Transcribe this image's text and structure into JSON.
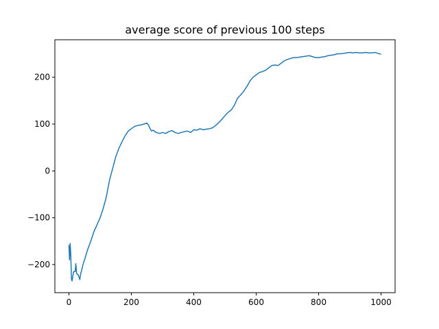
{
  "chart_data": {
    "type": "line",
    "title": "average score of previous 100 steps",
    "xlabel": "",
    "ylabel": "",
    "xlim": [
      -45,
      1045
    ],
    "ylim": [
      -260,
      280
    ],
    "grid": false,
    "xticks": [
      0,
      200,
      400,
      600,
      800,
      1000
    ],
    "xtick_labels": [
      "0",
      "200",
      "400",
      "600",
      "800",
      "1000"
    ],
    "yticks": [
      -200,
      -100,
      0,
      100,
      200
    ],
    "ytick_labels": [
      "−200",
      "−100",
      "0",
      "100",
      "200"
    ],
    "series": [
      {
        "color": "#1f77b4",
        "x": [
          0,
          2,
          4,
          6,
          8,
          10,
          15,
          20,
          22,
          25,
          30,
          35,
          38,
          40,
          45,
          50,
          60,
          70,
          80,
          90,
          100,
          110,
          120,
          130,
          140,
          150,
          160,
          170,
          180,
          190,
          200,
          210,
          220,
          230,
          240,
          250,
          255,
          260,
          265,
          270,
          275,
          280,
          290,
          300,
          310,
          320,
          330,
          340,
          350,
          360,
          370,
          380,
          390,
          400,
          410,
          420,
          430,
          440,
          450,
          460,
          470,
          480,
          490,
          500,
          510,
          520,
          530,
          540,
          550,
          560,
          570,
          580,
          590,
          600,
          610,
          620,
          630,
          640,
          650,
          660,
          670,
          680,
          690,
          700,
          710,
          720,
          730,
          740,
          750,
          760,
          770,
          780,
          790,
          800,
          810,
          820,
          830,
          840,
          850,
          860,
          870,
          880,
          890,
          900,
          910,
          920,
          930,
          940,
          950,
          960,
          970,
          980,
          990,
          1000
        ],
        "y": [
          -158,
          -190,
          -155,
          -180,
          -230,
          -235,
          -215,
          -215,
          -198,
          -220,
          -222,
          -232,
          -218,
          -215,
          -200,
          -190,
          -168,
          -150,
          -130,
          -115,
          -100,
          -80,
          -55,
          -20,
          5,
          30,
          48,
          62,
          75,
          85,
          90,
          95,
          97,
          98,
          100,
          102,
          98,
          90,
          85,
          87,
          84,
          82,
          80,
          82,
          80,
          84,
          86,
          82,
          80,
          82,
          84,
          85,
          82,
          88,
          87,
          90,
          88,
          89,
          90,
          92,
          97,
          103,
          110,
          118,
          125,
          130,
          140,
          155,
          162,
          170,
          180,
          192,
          200,
          205,
          210,
          212,
          215,
          220,
          225,
          226,
          225,
          230,
          235,
          238,
          240,
          242,
          242,
          243,
          244,
          245,
          246,
          244,
          242,
          242,
          243,
          244,
          246,
          247,
          248,
          250,
          250,
          251,
          252,
          253,
          252,
          253,
          252,
          252,
          253,
          252,
          252,
          253,
          251,
          249
        ]
      }
    ]
  }
}
